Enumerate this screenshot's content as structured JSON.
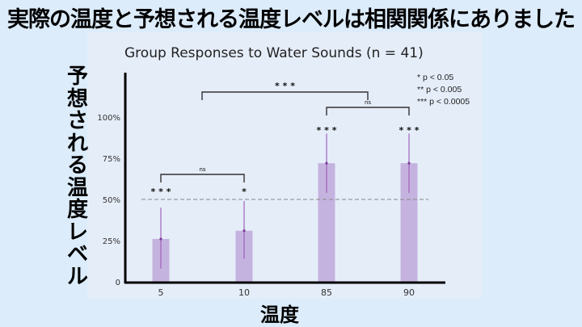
{
  "headline": "実際の温度と予想される温度レベルは相関関係にありました",
  "colors": {
    "background": "#dcecfb",
    "panel": "#e5edf9",
    "bar": "#c5b3df",
    "errorbar": "#9b59b6",
    "axis": "#000000",
    "bracket": "#333333",
    "reference_line": "#888888"
  },
  "chart_data": {
    "type": "bar",
    "title": "Group Responses to Water Sounds (n = 41)",
    "xlabel": "温度",
    "ylabel": "予想される温度レベル",
    "categories": [
      "5",
      "10",
      "85",
      "90"
    ],
    "values": [
      26,
      31,
      72,
      72
    ],
    "error_low": [
      8,
      14,
      54,
      54
    ],
    "error_high": [
      45,
      49,
      90,
      90
    ],
    "unit": "%",
    "ylim": [
      0,
      125
    ],
    "yticks": [
      {
        "value": 0,
        "label": "0"
      },
      {
        "value": 25,
        "label": "25%"
      },
      {
        "value": 50,
        "label": "50%"
      },
      {
        "value": 75,
        "label": "75%"
      },
      {
        "value": 100,
        "label": "100%"
      }
    ],
    "reference_line": {
      "value": 50,
      "style": "dashed"
    },
    "bar_significance": [
      "* * *",
      "*",
      "* * *",
      "* * *"
    ],
    "comparisons": [
      {
        "from": "5",
        "to": "10",
        "label": "ns"
      },
      {
        "from": "85",
        "to": "90",
        "label": "ns"
      },
      {
        "from": "10/5 midpoint",
        "to": "85/90 midpoint",
        "label": "* * *"
      }
    ],
    "legend": [
      "* p < 0.05",
      "** p < 0.005",
      "*** p < 0.0005"
    ],
    "grid": false
  }
}
